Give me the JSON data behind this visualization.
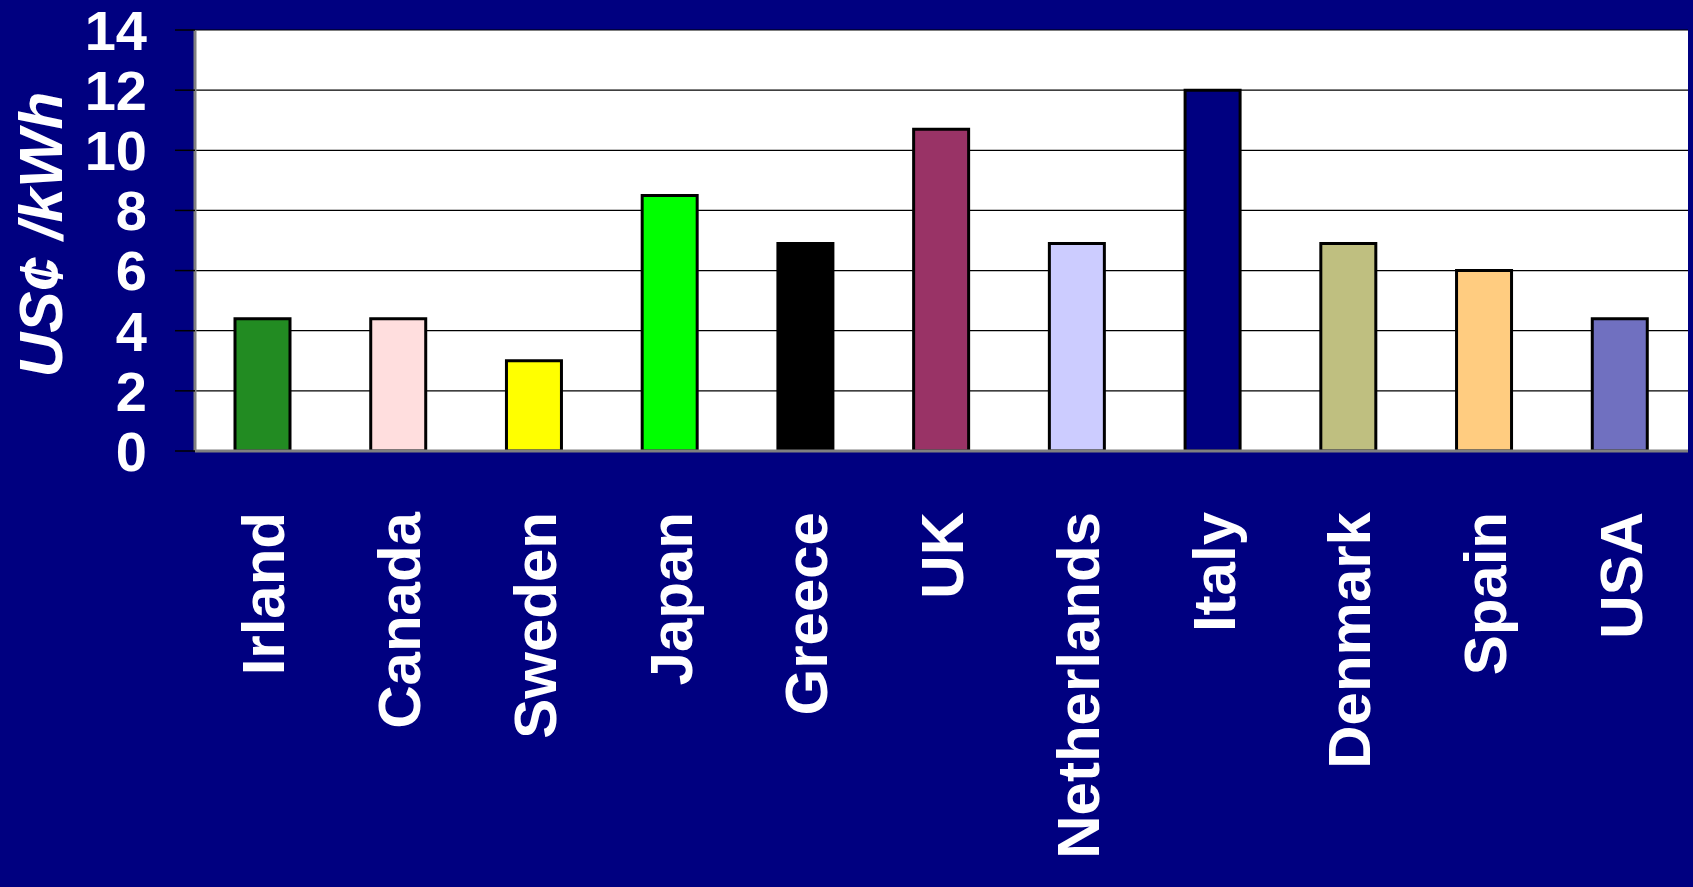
{
  "chart_data": {
    "type": "bar",
    "ylabel": "US¢ /kWh",
    "categories": [
      "Irland",
      "Canada",
      "Sweden",
      "Japan",
      "Greece",
      "UK",
      "Netherlands",
      "Italy",
      "Denmark",
      "Spain",
      "USA"
    ],
    "values": [
      4.4,
      4.4,
      3.0,
      8.5,
      6.9,
      10.7,
      6.9,
      12.0,
      6.9,
      6.0,
      4.4
    ],
    "colors": [
      "#228b22",
      "#ffdede",
      "#ffff00",
      "#00ff00",
      "#000000",
      "#993366",
      "#ccccff",
      "#000080",
      "#bfbf80",
      "#ffcc80",
      "#7070c0"
    ],
    "ylim": [
      0,
      14
    ],
    "yticks": [
      0,
      2,
      4,
      6,
      8,
      10,
      12,
      14
    ],
    "grid": "y"
  }
}
